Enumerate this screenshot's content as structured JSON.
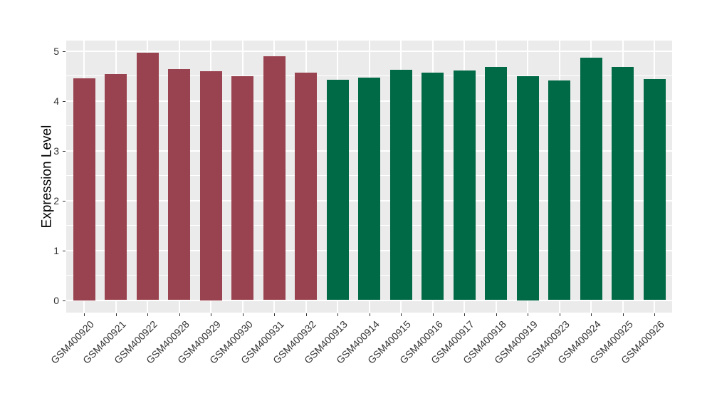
{
  "figure": {
    "background": "#FFFFFF",
    "panel_background": "#EBEBEB",
    "gridline_color": "#FFFFFF",
    "tick_color": "#333333",
    "tick_label_color": "#333333",
    "axis_title_color": "#000000",
    "group_colors": {
      "maroon": "#9A4350",
      "green": "#006946"
    }
  },
  "chart_data": {
    "type": "bar",
    "title": "",
    "xlabel": "",
    "ylabel": "Expression Level",
    "ylim": [
      0,
      5.2
    ],
    "y_ticks": [
      0,
      1,
      2,
      3,
      4,
      5
    ],
    "grid": true,
    "legend_position": "none",
    "categories": [
      "GSM400920",
      "GSM400921",
      "GSM400922",
      "GSM400928",
      "GSM400929",
      "GSM400930",
      "GSM400931",
      "GSM400932",
      "GSM400913",
      "GSM400914",
      "GSM400915",
      "GSM400916",
      "GSM400917",
      "GSM400918",
      "GSM400919",
      "GSM400923",
      "GSM400924",
      "GSM400925",
      "GSM400926"
    ],
    "values": [
      4.45,
      4.54,
      4.96,
      4.63,
      4.6,
      4.49,
      4.89,
      4.56,
      4.42,
      4.47,
      4.62,
      4.57,
      4.61,
      4.68,
      4.5,
      4.41,
      4.86,
      4.68,
      4.44
    ],
    "bar_colors": [
      "#9A4350",
      "#9A4350",
      "#9A4350",
      "#9A4350",
      "#9A4350",
      "#9A4350",
      "#9A4350",
      "#9A4350",
      "#006946",
      "#006946",
      "#006946",
      "#006946",
      "#006946",
      "#006946",
      "#006946",
      "#006946",
      "#006946",
      "#006946",
      "#006946"
    ]
  }
}
